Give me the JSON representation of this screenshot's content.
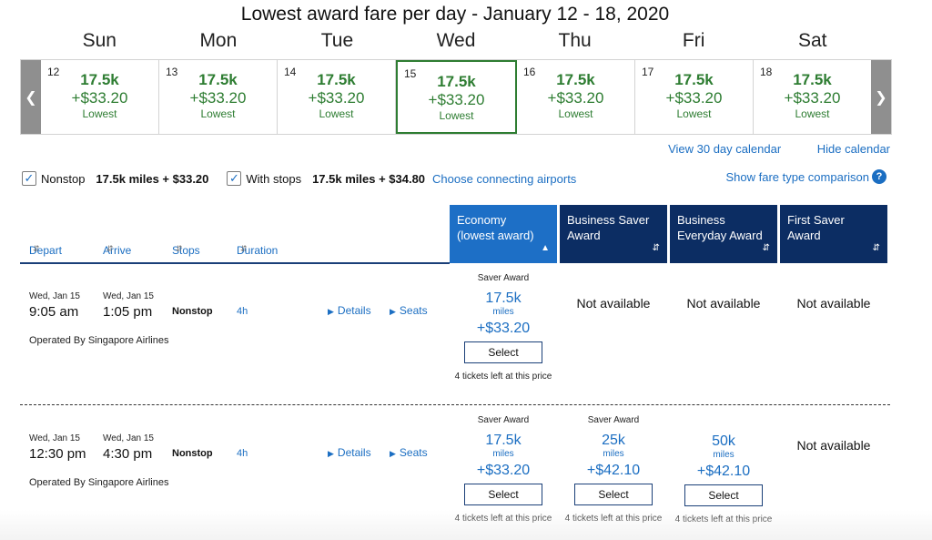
{
  "title": "Lowest award fare per day - January 12 - 18, 2020",
  "day_names": [
    "Sun",
    "Mon",
    "Tue",
    "Wed",
    "Thu",
    "Fri",
    "Sat"
  ],
  "days": [
    {
      "num": "12",
      "miles": "17.5k",
      "price": "+$33.20",
      "label": "Lowest"
    },
    {
      "num": "13",
      "miles": "17.5k",
      "price": "+$33.20",
      "label": "Lowest"
    },
    {
      "num": "14",
      "miles": "17.5k",
      "price": "+$33.20",
      "label": "Lowest"
    },
    {
      "num": "15",
      "miles": "17.5k",
      "price": "+$33.20",
      "label": "Lowest"
    },
    {
      "num": "16",
      "miles": "17.5k",
      "price": "+$33.20",
      "label": "Lowest"
    },
    {
      "num": "17",
      "miles": "17.5k",
      "price": "+$33.20",
      "label": "Lowest"
    },
    {
      "num": "18",
      "miles": "17.5k",
      "price": "+$33.20",
      "label": "Lowest"
    }
  ],
  "selected_day": "15",
  "calendar_links": {
    "view30": "View 30 day calendar",
    "hide": "Hide calendar"
  },
  "filters": {
    "nonstop_label": "Nonstop",
    "nonstop_fare": "17.5k miles + $33.20",
    "nonstop_checked": true,
    "stops_label": "With stops",
    "stops_fare": "17.5k miles + $34.80",
    "stops_checked": true,
    "connecting": "Choose connecting airports"
  },
  "compare_link": "Show fare type comparison",
  "sort_columns": [
    "Depart",
    "Arrive",
    "Stops",
    "Duration"
  ],
  "fare_columns": [
    {
      "l1": "Economy",
      "l2": "(lowest award)"
    },
    {
      "l1": "Business Saver",
      "l2": "Award"
    },
    {
      "l1": "Business",
      "l2": "Everyday Award"
    },
    {
      "l1": "First Saver Award",
      "l2": ""
    }
  ],
  "flights": [
    {
      "depart_date": "Wed, Jan 15",
      "depart_time": "9:05 am",
      "arrive_date": "Wed, Jan 15",
      "arrive_time": "1:05 pm",
      "stops": "Nonstop",
      "duration": "4h",
      "details": "Details",
      "seats": "Seats",
      "operator": "Operated By Singapore Airlines",
      "fares": [
        {
          "available": true,
          "type": "Saver Award",
          "miles": "17.5k",
          "miles_label": "miles",
          "price": "+$33.20",
          "button": "Select",
          "left": "4 tickets left at this price"
        },
        {
          "available": false,
          "text": "Not available"
        },
        {
          "available": false,
          "text": "Not available"
        },
        {
          "available": false,
          "text": "Not available"
        }
      ]
    },
    {
      "depart_date": "Wed, Jan 15",
      "depart_time": "12:30 pm",
      "arrive_date": "Wed, Jan 15",
      "arrive_time": "4:30 pm",
      "stops": "Nonstop",
      "duration": "4h",
      "details": "Details",
      "seats": "Seats",
      "operator": "Operated By Singapore Airlines",
      "fares": [
        {
          "available": true,
          "type": "Saver Award",
          "miles": "17.5k",
          "miles_label": "miles",
          "price": "+$33.20",
          "button": "Select",
          "left": "4 tickets left at this price"
        },
        {
          "available": true,
          "type": "Saver Award",
          "miles": "25k",
          "miles_label": "miles",
          "price": "+$42.10",
          "button": "Select",
          "left": "4 tickets left at this price"
        },
        {
          "available": true,
          "type": "",
          "miles": "50k",
          "miles_label": "miles",
          "price": "+$42.10",
          "button": "Select",
          "left": "4 tickets left at this price"
        },
        {
          "available": false,
          "text": "Not available"
        }
      ]
    }
  ],
  "colors": {
    "green": "#2e7d32",
    "link": "#1b6ec2",
    "navy": "#0c2d63",
    "economy": "#1d6fc6"
  }
}
